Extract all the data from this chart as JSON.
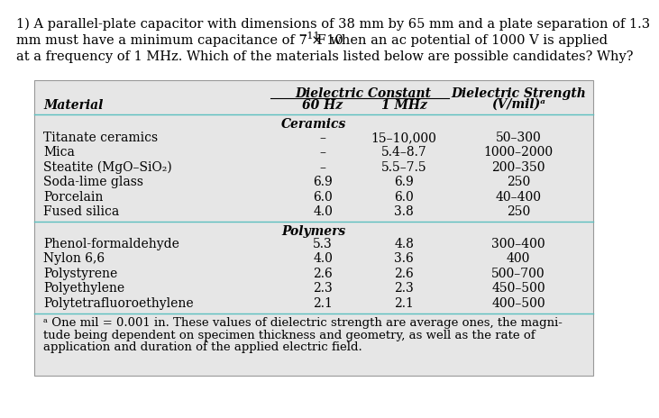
{
  "table_bg": "#e6e6e6",
  "rows_ceramics": [
    [
      "Titanate ceramics",
      "–",
      "15–10,000",
      "50–300"
    ],
    [
      "Mica",
      "–",
      "5.4–8.7",
      "1000–2000"
    ],
    [
      "Steatite (MgO–SiO₂)",
      "–",
      "5.5–7.5",
      "200–350"
    ],
    [
      "Soda-lime glass",
      "6.9",
      "6.9",
      "250"
    ],
    [
      "Porcelain",
      "6.0",
      "6.0",
      "40–400"
    ],
    [
      "Fused silica",
      "4.0",
      "3.8",
      "250"
    ]
  ],
  "rows_polymers": [
    [
      "Phenol-formaldehyde",
      "5.3",
      "4.8",
      "300–400"
    ],
    [
      "Nylon 6,6",
      "4.0",
      "3.6",
      "400"
    ],
    [
      "Polystyrene",
      "2.6",
      "2.6",
      "500–700"
    ],
    [
      "Polyethylene",
      "2.3",
      "2.3",
      "450–500"
    ],
    [
      "Polytetrafluoroethylene",
      "2.1",
      "2.1",
      "400–500"
    ]
  ],
  "footnote_lines": [
    "ᵃ One mil = 0.001 in. These values of dielectric strength are average ones, the magni-",
    "tude being dependent on specimen thickness and geometry, as well as the rate of",
    "application and duration of the applied electric field."
  ],
  "title_line1": "1) A parallel-plate capacitor with dimensions of 38 mm by 65 mm and a plate separation of 1.3",
  "title_line2a": "mm must have a minimum capacitance of 7 × 10",
  "title_line2b": "−11",
  "title_line2c": " F when an ac potential of 1000 V is applied",
  "title_line3": "at a frequency of 1 MHz. Which of the materials listed below are possible candidates? Why?",
  "font_size_title": 10.5,
  "font_size_table": 10.0,
  "font_size_footnote": 9.5
}
